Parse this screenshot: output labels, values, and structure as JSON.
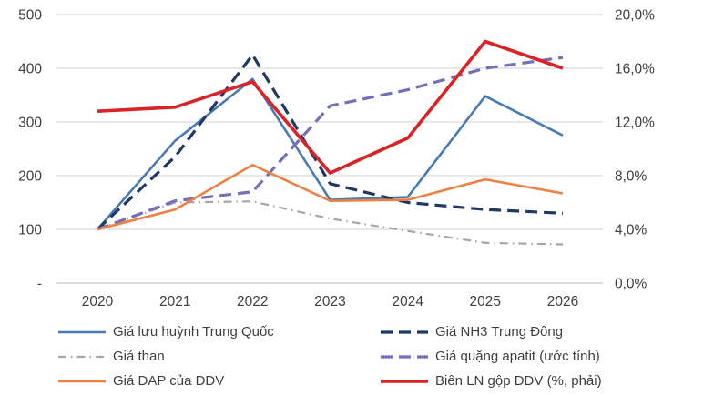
{
  "chart_data": {
    "type": "line",
    "title": "",
    "xlabel": "",
    "ylabel_left": "",
    "ylabel_right": "",
    "x_labels": [
      "2020",
      "2021",
      "2022",
      "2023",
      "2024",
      "2025",
      "2026"
    ],
    "left_axis": {
      "min": 0,
      "max": 500,
      "tick_values": [
        500,
        400,
        300,
        200,
        100,
        0
      ],
      "tick_labels": [
        "500",
        "400",
        "300",
        "200",
        "100",
        "-"
      ]
    },
    "right_axis": {
      "min": 0,
      "max": 20,
      "tick_values": [
        20,
        16,
        12,
        8,
        4,
        0
      ],
      "tick_labels": [
        "20,0%",
        "16,0%",
        "12,0%",
        "8,0%",
        "4,0%",
        "0,0%"
      ]
    },
    "grid": "horizontal",
    "legend_position": "bottom",
    "legend_columns": [
      [
        0,
        2,
        4
      ],
      [
        1,
        3,
        5
      ]
    ],
    "series": [
      {
        "name": "Giá lưu huỳnh Trung Quốc",
        "axis": "left",
        "color": "#4a7ab5",
        "style": "solid",
        "values": [
          100,
          265,
          380,
          155,
          160,
          348,
          275
        ]
      },
      {
        "name": "Giá NH3 Trung Đông",
        "axis": "left",
        "color": "#1f3864",
        "style": "dashed",
        "values": [
          100,
          235,
          425,
          185,
          150,
          137,
          130
        ]
      },
      {
        "name": "Giá than",
        "axis": "left",
        "color": "#a6a6a6",
        "style": "dash-dot",
        "values": [
          100,
          150,
          152,
          120,
          97,
          75,
          72
        ]
      },
      {
        "name": "Giá quặng apatit (ước tính)",
        "axis": "left",
        "color": "#7470b8",
        "style": "dashed",
        "values": [
          100,
          153,
          170,
          330,
          360,
          400,
          420
        ]
      },
      {
        "name": "Giá DAP của DDV",
        "axis": "left",
        "color": "#ed8144",
        "style": "solid",
        "values": [
          100,
          137,
          220,
          153,
          155,
          193,
          167
        ]
      },
      {
        "name": "Biên LN gộp DDV (%, phải)",
        "axis": "right",
        "color": "#da2327",
        "style": "solid",
        "values": [
          12.8,
          13.1,
          15.0,
          8.2,
          10.8,
          18.0,
          16.0
        ]
      }
    ],
    "colors": {
      "gridline": "#d9d9d9",
      "axis_line": "#c6c6c6",
      "tick_text": "#3f3f3f"
    }
  }
}
